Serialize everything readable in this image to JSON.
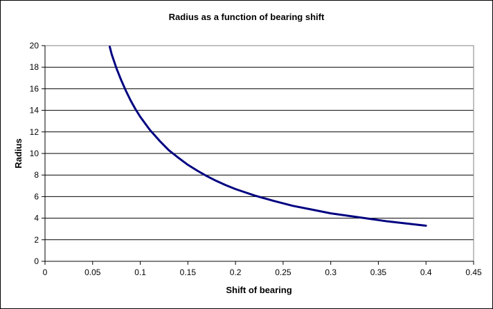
{
  "chart_data": {
    "type": "line",
    "title": "Radius as a function of bearing shift",
    "xlabel": "Shift of bearing",
    "ylabel": "Radius",
    "xlim": [
      0,
      0.45
    ],
    "ylim": [
      0,
      20
    ],
    "xticks": [
      0,
      0.05,
      0.1,
      0.15,
      0.2,
      0.25,
      0.3,
      0.35,
      0.4,
      0.45
    ],
    "xtick_labels": [
      "0",
      "0.05",
      "0.1",
      "0.15",
      "0.2",
      "0.25",
      "0.3",
      "0.35",
      "0.4",
      "0.45"
    ],
    "yticks": [
      0,
      2,
      4,
      6,
      8,
      10,
      12,
      14,
      16,
      18,
      20
    ],
    "ytick_labels": [
      "0",
      "2",
      "4",
      "6",
      "8",
      "10",
      "12",
      "14",
      "16",
      "18",
      "20"
    ],
    "grid": "horizontal",
    "legend": "none",
    "series": [
      {
        "color": "#000080",
        "x": [
          0.068,
          0.07,
          0.075,
          0.08,
          0.085,
          0.09,
          0.095,
          0.1,
          0.11,
          0.12,
          0.13,
          0.14,
          0.15,
          0.16,
          0.17,
          0.18,
          0.19,
          0.2,
          0.22,
          0.24,
          0.26,
          0.28,
          0.3,
          0.32,
          0.34,
          0.36,
          0.38,
          0.4
        ],
        "y": [
          19.9,
          19.2,
          17.9,
          16.8,
          15.8,
          14.9,
          14.1,
          13.4,
          12.2,
          11.2,
          10.3,
          9.6,
          8.95,
          8.4,
          7.9,
          7.45,
          7.05,
          6.7,
          6.1,
          5.6,
          5.15,
          4.8,
          4.45,
          4.2,
          3.95,
          3.7,
          3.5,
          3.3
        ]
      }
    ]
  }
}
